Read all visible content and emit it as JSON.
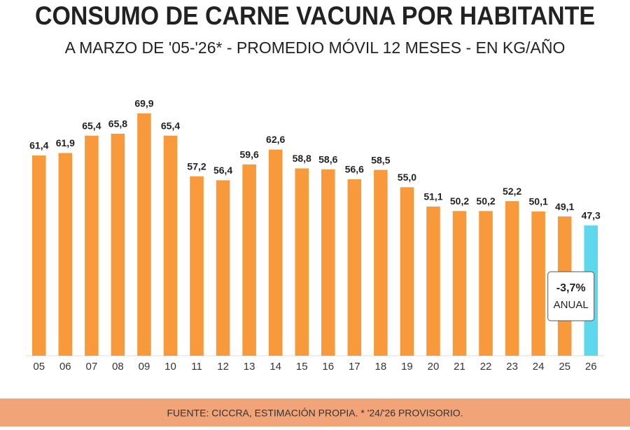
{
  "chart_data": {
    "type": "bar",
    "title": "CONSUMO DE CARNE VACUNA POR HABITANTE",
    "subtitle": "A MARZO DE '05-'26* - PROMEDIO MÓVIL 12 MESES - EN KG/AÑO",
    "categories": [
      "05",
      "06",
      "07",
      "08",
      "09",
      "10",
      "11",
      "12",
      "13",
      "14",
      "15",
      "16",
      "17",
      "18",
      "19",
      "20",
      "21",
      "22",
      "23",
      "24",
      "25",
      "26"
    ],
    "values": [
      61.4,
      61.9,
      65.4,
      65.8,
      69.9,
      65.4,
      57.2,
      56.4,
      59.6,
      62.6,
      58.8,
      58.6,
      56.6,
      58.5,
      55.0,
      51.1,
      50.2,
      50.2,
      52.2,
      50.1,
      49.1,
      47.3
    ],
    "value_labels": [
      "61,4",
      "61,9",
      "65,4",
      "65,8",
      "69,9",
      "65,4",
      "57,2",
      "56,4",
      "59,6",
      "62,6",
      "58,8",
      "58,6",
      "56,6",
      "58,5",
      "55,0",
      "51,1",
      "50,2",
      "50,2",
      "52,2",
      "50,1",
      "49,1",
      "47,3"
    ],
    "colors": [
      "#f8993c",
      "#f8993c",
      "#f8993c",
      "#f8993c",
      "#f8993c",
      "#f8993c",
      "#f8993c",
      "#f8993c",
      "#f8993c",
      "#f8993c",
      "#f8993c",
      "#f8993c",
      "#f8993c",
      "#f8993c",
      "#f8993c",
      "#f8993c",
      "#f8993c",
      "#f8993c",
      "#f8993c",
      "#f8993c",
      "#f8993c",
      "#5dd8ec"
    ],
    "ylim": [
      21,
      72
    ],
    "annotation": {
      "value": "-3,7%",
      "label": "ANUAL"
    },
    "source": "FUENTE: CICCRA, ESTIMACIÓN PROPIA. * '24/'26 PROVISORIO."
  }
}
